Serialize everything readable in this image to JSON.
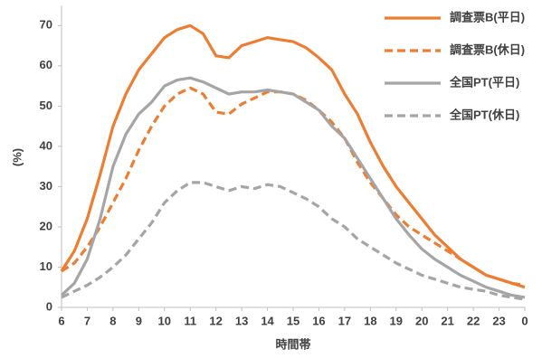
{
  "chart_data": {
    "type": "line",
    "x_label": "時間帯",
    "y_label": "(%)",
    "x": [
      6,
      6.5,
      7,
      7.5,
      8,
      8.5,
      9,
      9.5,
      10,
      10.5,
      11,
      11.5,
      12,
      12.5,
      13,
      13.5,
      14,
      14.5,
      15,
      15.5,
      16,
      16.5,
      17,
      17.5,
      18,
      18.5,
      19,
      19.5,
      20,
      20.5,
      21,
      21.5,
      22,
      22.5,
      23,
      23.5,
      24
    ],
    "xlim": [
      6,
      24
    ],
    "xticks": [
      6,
      7,
      8,
      9,
      10,
      11,
      12,
      13,
      14,
      15,
      16,
      17,
      18,
      19,
      20,
      21,
      22,
      23,
      {
        "value": 24,
        "label": "0"
      }
    ],
    "ylim": [
      0,
      75
    ],
    "yticks": [
      0,
      10,
      20,
      30,
      40,
      50,
      60,
      70
    ],
    "legend": "top-right",
    "series": [
      {
        "name": "調査票B(平日)",
        "color": "#ed7d31",
        "dashed": false,
        "values": [
          9,
          14,
          22,
          33,
          45,
          53,
          59,
          63,
          67,
          69,
          70,
          68,
          62.5,
          62,
          65,
          66,
          67,
          66.5,
          66,
          64.5,
          62,
          59,
          53,
          48,
          41,
          35,
          30,
          26,
          22,
          18,
          15,
          12,
          10,
          8,
          7,
          6,
          5
        ]
      },
      {
        "name": "調査票B(休日)",
        "color": "#ed7d31",
        "dashed": true,
        "values": [
          9,
          11,
          15,
          20,
          26,
          32,
          39,
          45,
          50,
          53,
          54.5,
          53,
          48.5,
          48,
          50.5,
          52,
          53.5,
          53.5,
          53,
          51.5,
          49,
          46,
          42,
          36,
          31,
          27,
          23,
          20,
          18,
          16,
          14,
          12,
          10,
          8,
          7,
          6,
          5.5
        ]
      },
      {
        "name": "全国PT(平日)",
        "color": "#a5a5a5",
        "dashed": false,
        "values": [
          3,
          6,
          12,
          22,
          35,
          43,
          48,
          51,
          55,
          56.5,
          57,
          56,
          54.5,
          53,
          53.5,
          53.5,
          54,
          53.5,
          53,
          51,
          49,
          45,
          42,
          37,
          32,
          27,
          22,
          18,
          14.5,
          12,
          10,
          8,
          6.5,
          5,
          4,
          3,
          2.5
        ]
      },
      {
        "name": "全国PT(休日)",
        "color": "#a5a5a5",
        "dashed": true,
        "values": [
          2.5,
          4,
          5.5,
          7.5,
          10,
          13,
          17,
          21,
          26,
          29,
          31,
          31,
          30,
          29,
          30,
          29.5,
          30.5,
          30,
          28.5,
          27,
          25,
          22,
          20,
          17,
          15,
          13,
          11,
          9.5,
          8,
          7,
          6,
          5,
          4.5,
          4,
          3,
          2.5,
          2
        ]
      }
    ]
  }
}
